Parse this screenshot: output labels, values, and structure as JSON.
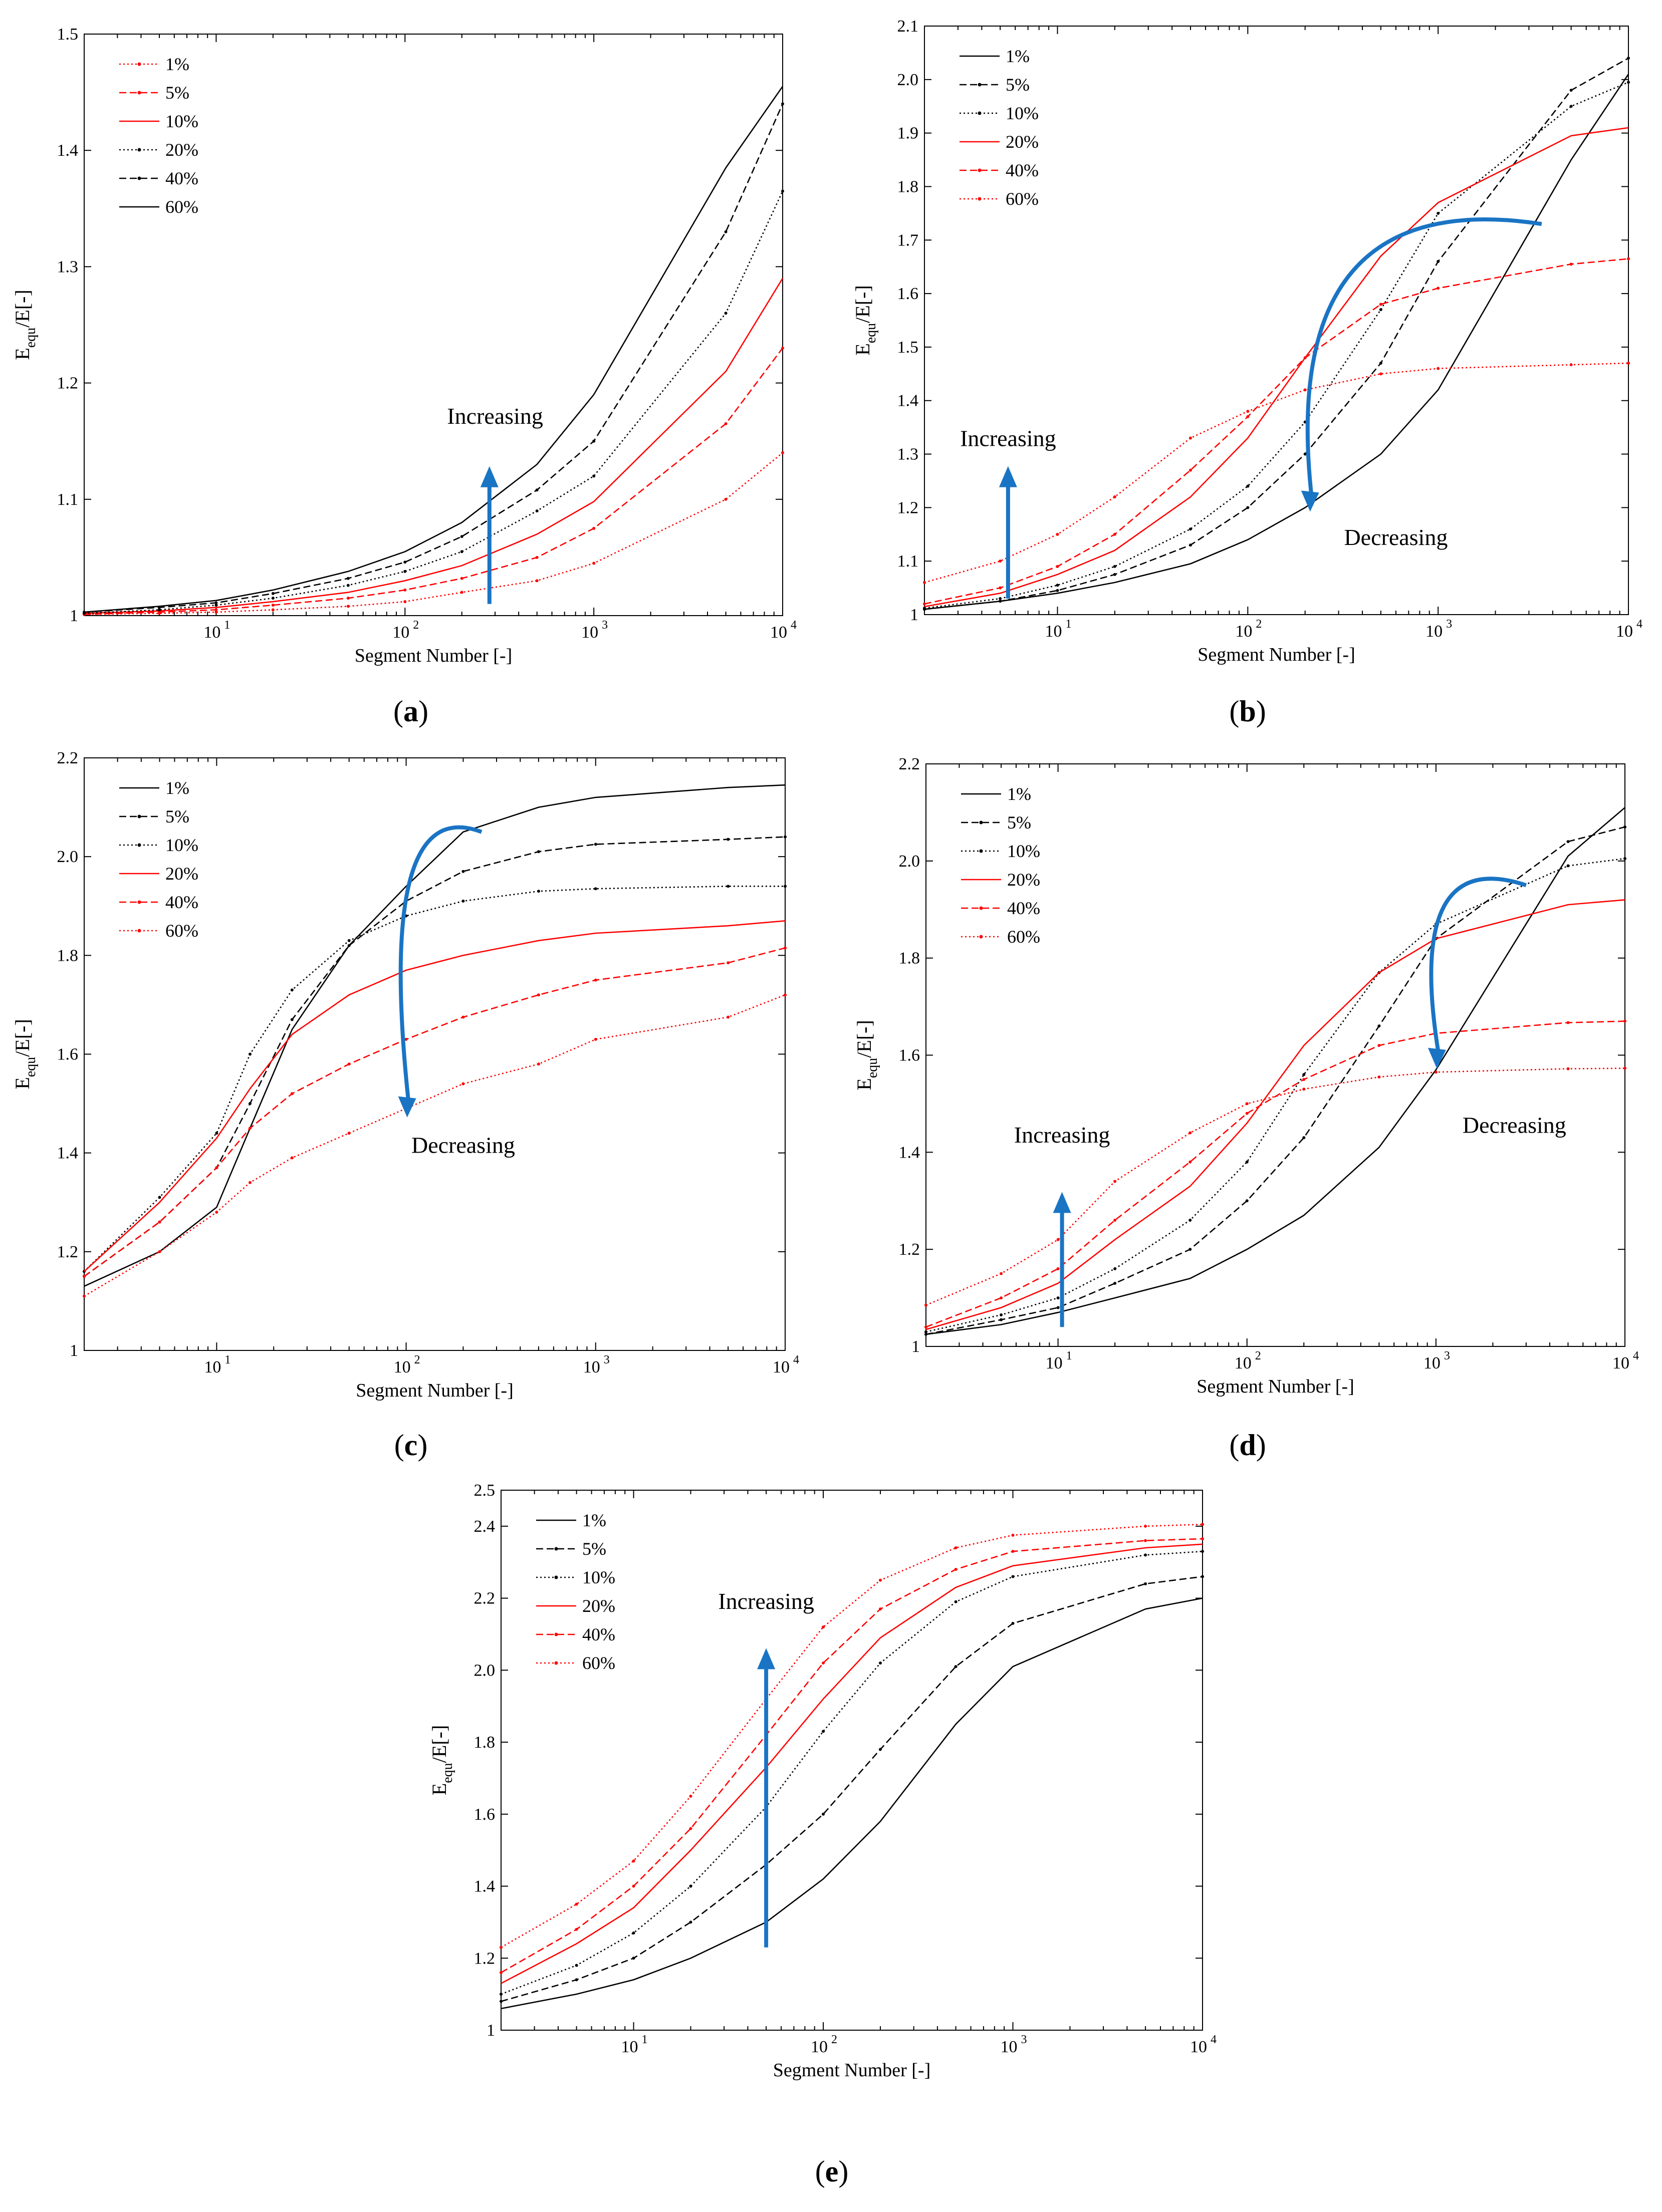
{
  "figure": {
    "xlabel": "Segment Number [-]",
    "ylabel_main": "E",
    "ylabel_sub": "equ",
    "ylabel_rest": "/E[-]"
  },
  "styles": {
    "black": "#000000",
    "red": "#ff0000",
    "arrow": "#1a74c4"
  },
  "chart_data": [
    {
      "id": "a",
      "caption_letter": "a",
      "type": "line",
      "xscale": "log",
      "xlim": [
        2,
        10000
      ],
      "ylim": [
        1.0,
        1.5
      ],
      "yticks": [
        1.0,
        1.1,
        1.2,
        1.3,
        1.4,
        1.5
      ],
      "ytick_labels": [
        "1",
        "1.1",
        "1.2",
        "1.3",
        "1.4",
        "1.5"
      ],
      "xtick_labels": [
        "10^1",
        "10^2",
        "10^3",
        "10^4"
      ],
      "xlabel": "Segment Number [-]",
      "legend_position": "top-left",
      "x": [
        2,
        5,
        10,
        20,
        50,
        100,
        200,
        500,
        1000,
        5000,
        10000
      ],
      "series": [
        {
          "name": "1%",
          "color": "red",
          "dash": "dot",
          "values": [
            1.001,
            1.002,
            1.003,
            1.005,
            1.008,
            1.012,
            1.02,
            1.03,
            1.045,
            1.1,
            1.14
          ]
        },
        {
          "name": "5%",
          "color": "red",
          "dash": "dash",
          "values": [
            1.001,
            1.003,
            1.005,
            1.009,
            1.015,
            1.022,
            1.032,
            1.05,
            1.075,
            1.165,
            1.23
          ]
        },
        {
          "name": "10%",
          "color": "red",
          "dash": "solid",
          "values": [
            1.002,
            1.004,
            1.007,
            1.012,
            1.02,
            1.03,
            1.043,
            1.07,
            1.098,
            1.21,
            1.29
          ]
        },
        {
          "name": "20%",
          "color": "black",
          "dash": "dot",
          "values": [
            1.002,
            1.005,
            1.009,
            1.015,
            1.026,
            1.038,
            1.055,
            1.09,
            1.12,
            1.26,
            1.365
          ]
        },
        {
          "name": "40%",
          "color": "black",
          "dash": "dash",
          "values": [
            1.003,
            1.007,
            1.011,
            1.019,
            1.032,
            1.046,
            1.068,
            1.108,
            1.15,
            1.33,
            1.44
          ]
        },
        {
          "name": "60%",
          "color": "black",
          "dash": "solid",
          "values": [
            1.003,
            1.008,
            1.013,
            1.022,
            1.038,
            1.055,
            1.08,
            1.13,
            1.19,
            1.385,
            1.455
          ]
        }
      ],
      "annotations": [
        {
          "text": "Increasing",
          "type": "arrow-up",
          "x": 280,
          "y_from": 1.01,
          "y_to": 1.125,
          "label_x": 300,
          "label_y": 1.165
        }
      ]
    },
    {
      "id": "b",
      "caption_letter": "b",
      "type": "line",
      "xscale": "log",
      "xlim": [
        2,
        10000
      ],
      "ylim": [
        1.0,
        2.1
      ],
      "yticks": [
        1.0,
        1.1,
        1.2,
        1.3,
        1.4,
        1.5,
        1.6,
        1.7,
        1.8,
        1.9,
        2.0,
        2.1
      ],
      "ytick_labels": [
        "1",
        "1.1",
        "1.2",
        "1.3",
        "1.4",
        "1.5",
        "1.6",
        "1.7",
        "1.8",
        "1.9",
        "2.0",
        "2.1"
      ],
      "xtick_labels": [
        "10^1",
        "10^2",
        "10^3",
        "10^4"
      ],
      "xlabel": "Segment Number [-]",
      "legend_position": "top-left",
      "x": [
        2,
        5,
        10,
        20,
        50,
        100,
        200,
        500,
        1000,
        5000,
        10000
      ],
      "series": [
        {
          "name": "1%",
          "color": "black",
          "dash": "solid",
          "values": [
            1.01,
            1.025,
            1.04,
            1.06,
            1.095,
            1.14,
            1.2,
            1.3,
            1.42,
            1.85,
            2.01
          ]
        },
        {
          "name": "5%",
          "color": "black",
          "dash": "dash",
          "values": [
            1.01,
            1.025,
            1.045,
            1.075,
            1.13,
            1.2,
            1.3,
            1.47,
            1.66,
            1.98,
            2.04
          ]
        },
        {
          "name": "10%",
          "color": "black",
          "dash": "dot",
          "values": [
            1.012,
            1.03,
            1.055,
            1.09,
            1.16,
            1.24,
            1.36,
            1.57,
            1.75,
            1.95,
            1.995
          ]
        },
        {
          "name": "20%",
          "color": "red",
          "dash": "solid",
          "values": [
            1.015,
            1.04,
            1.075,
            1.12,
            1.22,
            1.33,
            1.48,
            1.67,
            1.77,
            1.895,
            1.91
          ]
        },
        {
          "name": "40%",
          "color": "red",
          "dash": "dash",
          "values": [
            1.02,
            1.05,
            1.09,
            1.15,
            1.27,
            1.37,
            1.48,
            1.58,
            1.61,
            1.655,
            1.665
          ]
        },
        {
          "name": "60%",
          "color": "red",
          "dash": "dot",
          "values": [
            1.06,
            1.1,
            1.15,
            1.22,
            1.33,
            1.38,
            1.42,
            1.45,
            1.46,
            1.467,
            1.47
          ]
        }
      ],
      "annotations": [
        {
          "text": "Increasing",
          "type": "arrow-up",
          "x": 5.5,
          "y_from": 1.03,
          "y_to": 1.27,
          "label_x": 5.5,
          "label_y": 1.315
        },
        {
          "text": "Decreasing",
          "type": "arrow-curve",
          "x_from": 3500,
          "y_from": 1.73,
          "x_to": 210,
          "y_to": 1.2,
          "label_x": 600,
          "label_y": 1.13
        }
      ]
    },
    {
      "id": "c",
      "caption_letter": "c",
      "type": "line",
      "xscale": "log",
      "xlim": [
        2,
        10000
      ],
      "ylim": [
        1.0,
        2.2
      ],
      "yticks": [
        1.0,
        1.2,
        1.4,
        1.6,
        1.8,
        2.0,
        2.2
      ],
      "ytick_labels": [
        "1",
        "1.2",
        "1.4",
        "1.6",
        "1.8",
        "2.0",
        "2.2"
      ],
      "xtick_labels": [
        "10^1",
        "10^2",
        "10^3",
        "10^4"
      ],
      "xlabel": "Segment Number [-]",
      "legend_position": "top-left",
      "x": [
        2,
        5,
        10,
        15,
        25,
        50,
        100,
        200,
        500,
        1000,
        5000,
        10000
      ],
      "series": [
        {
          "name": "1%",
          "color": "black",
          "dash": "solid",
          "values": [
            1.13,
            1.2,
            1.29,
            1.45,
            1.65,
            1.82,
            1.94,
            2.05,
            2.1,
            2.12,
            2.14,
            2.145
          ]
        },
        {
          "name": "5%",
          "color": "black",
          "dash": "dash",
          "values": [
            1.15,
            1.26,
            1.37,
            1.5,
            1.67,
            1.82,
            1.91,
            1.97,
            2.01,
            2.025,
            2.035,
            2.04
          ]
        },
        {
          "name": "10%",
          "color": "black",
          "dash": "dot",
          "values": [
            1.16,
            1.31,
            1.44,
            1.6,
            1.73,
            1.83,
            1.88,
            1.91,
            1.93,
            1.935,
            1.94,
            1.94
          ]
        },
        {
          "name": "20%",
          "color": "red",
          "dash": "solid",
          "values": [
            1.16,
            1.3,
            1.43,
            1.53,
            1.64,
            1.72,
            1.77,
            1.8,
            1.83,
            1.845,
            1.86,
            1.87
          ]
        },
        {
          "name": "40%",
          "color": "red",
          "dash": "dash",
          "values": [
            1.15,
            1.26,
            1.37,
            1.45,
            1.52,
            1.58,
            1.63,
            1.675,
            1.72,
            1.75,
            1.785,
            1.815
          ]
        },
        {
          "name": "60%",
          "color": "red",
          "dash": "dot",
          "values": [
            1.11,
            1.2,
            1.28,
            1.34,
            1.39,
            1.44,
            1.49,
            1.54,
            1.58,
            1.63,
            1.675,
            1.72
          ]
        }
      ],
      "annotations": [
        {
          "text": "Decreasing",
          "type": "arrow-curve",
          "x_from": 250,
          "y_from": 2.05,
          "x_to": 100,
          "y_to": 1.48,
          "label_x": 200,
          "label_y": 1.4
        }
      ]
    },
    {
      "id": "d",
      "caption_letter": "d",
      "type": "line",
      "xscale": "log",
      "xlim": [
        2,
        10000
      ],
      "ylim": [
        1.0,
        2.2
      ],
      "yticks": [
        1.0,
        1.2,
        1.4,
        1.6,
        1.8,
        2.0,
        2.2
      ],
      "ytick_labels": [
        "1",
        "1.2",
        "1.4",
        "1.6",
        "1.8",
        "2.0",
        "2.2"
      ],
      "xtick_labels": [
        "10^1",
        "10^2",
        "10^3",
        "10^4"
      ],
      "xlabel": "Segment Number [-]",
      "legend_position": "top-left",
      "x": [
        2,
        5,
        10,
        20,
        50,
        100,
        200,
        500,
        1000,
        5000,
        10000
      ],
      "series": [
        {
          "name": "1%",
          "color": "black",
          "dash": "solid",
          "values": [
            1.025,
            1.045,
            1.07,
            1.1,
            1.14,
            1.2,
            1.27,
            1.41,
            1.57,
            2.01,
            2.11
          ]
        },
        {
          "name": "5%",
          "color": "black",
          "dash": "dash",
          "values": [
            1.025,
            1.055,
            1.08,
            1.13,
            1.2,
            1.3,
            1.43,
            1.66,
            1.84,
            2.04,
            2.07
          ]
        },
        {
          "name": "10%",
          "color": "black",
          "dash": "dot",
          "values": [
            1.03,
            1.065,
            1.1,
            1.16,
            1.26,
            1.38,
            1.56,
            1.77,
            1.87,
            1.99,
            2.005
          ]
        },
        {
          "name": "20%",
          "color": "red",
          "dash": "solid",
          "values": [
            1.035,
            1.08,
            1.13,
            1.22,
            1.33,
            1.46,
            1.62,
            1.77,
            1.84,
            1.91,
            1.92
          ]
        },
        {
          "name": "40%",
          "color": "red",
          "dash": "dash",
          "values": [
            1.04,
            1.1,
            1.16,
            1.26,
            1.38,
            1.48,
            1.55,
            1.62,
            1.645,
            1.667,
            1.67
          ]
        },
        {
          "name": "60%",
          "color": "red",
          "dash": "dot",
          "values": [
            1.085,
            1.15,
            1.22,
            1.34,
            1.44,
            1.5,
            1.53,
            1.555,
            1.565,
            1.572,
            1.573
          ]
        }
      ],
      "annotations": [
        {
          "text": "Increasing",
          "type": "arrow-up",
          "x": 10.5,
          "y_from": 1.04,
          "y_to": 1.31,
          "label_x": 10.5,
          "label_y": 1.42
        },
        {
          "text": "Decreasing",
          "type": "arrow-curve",
          "x_from": 3000,
          "y_from": 1.95,
          "x_to": 1000,
          "y_to": 1.58,
          "label_x": 2600,
          "label_y": 1.44
        }
      ]
    },
    {
      "id": "e",
      "caption_letter": "e",
      "type": "line",
      "xscale": "log",
      "xlim": [
        2,
        10000
      ],
      "ylim": [
        1.0,
        2.5
      ],
      "yticks": [
        1.0,
        1.2,
        1.4,
        1.6,
        1.8,
        2.0,
        2.2,
        2.4,
        2.5
      ],
      "ytick_labels": [
        "1",
        "1.2",
        "1.4",
        "1.6",
        "1.8",
        "2.0",
        "2.2",
        "2.4",
        "2.5"
      ],
      "xtick_labels": [
        "10^1",
        "10^2",
        "10^3",
        "10^4"
      ],
      "xlabel": "Segment Number [-]",
      "legend_position": "top-left",
      "x": [
        2,
        5,
        10,
        20,
        50,
        100,
        200,
        500,
        1000,
        5000,
        10000
      ],
      "series": [
        {
          "name": "1%",
          "color": "black",
          "dash": "solid",
          "values": [
            1.06,
            1.1,
            1.14,
            1.2,
            1.3,
            1.42,
            1.58,
            1.85,
            2.01,
            2.17,
            2.2
          ]
        },
        {
          "name": "5%",
          "color": "black",
          "dash": "dash",
          "values": [
            1.08,
            1.14,
            1.2,
            1.3,
            1.46,
            1.6,
            1.78,
            2.01,
            2.13,
            2.24,
            2.26
          ]
        },
        {
          "name": "10%",
          "color": "black",
          "dash": "dot",
          "values": [
            1.1,
            1.18,
            1.27,
            1.4,
            1.62,
            1.83,
            2.02,
            2.19,
            2.26,
            2.32,
            2.33
          ]
        },
        {
          "name": "20%",
          "color": "red",
          "dash": "solid",
          "values": [
            1.13,
            1.24,
            1.34,
            1.5,
            1.73,
            1.92,
            2.09,
            2.23,
            2.29,
            2.34,
            2.35
          ]
        },
        {
          "name": "40%",
          "color": "red",
          "dash": "dash",
          "values": [
            1.16,
            1.28,
            1.4,
            1.56,
            1.82,
            2.02,
            2.17,
            2.28,
            2.33,
            2.36,
            2.365
          ]
        },
        {
          "name": "60%",
          "color": "red",
          "dash": "dot",
          "values": [
            1.23,
            1.35,
            1.47,
            1.65,
            1.92,
            2.12,
            2.25,
            2.34,
            2.375,
            2.4,
            2.405
          ]
        }
      ],
      "annotations": [
        {
          "text": "Increasing",
          "type": "arrow-up",
          "x": 50,
          "y_from": 1.23,
          "y_to": 2.05,
          "label_x": 50,
          "label_y": 2.17
        }
      ]
    }
  ]
}
